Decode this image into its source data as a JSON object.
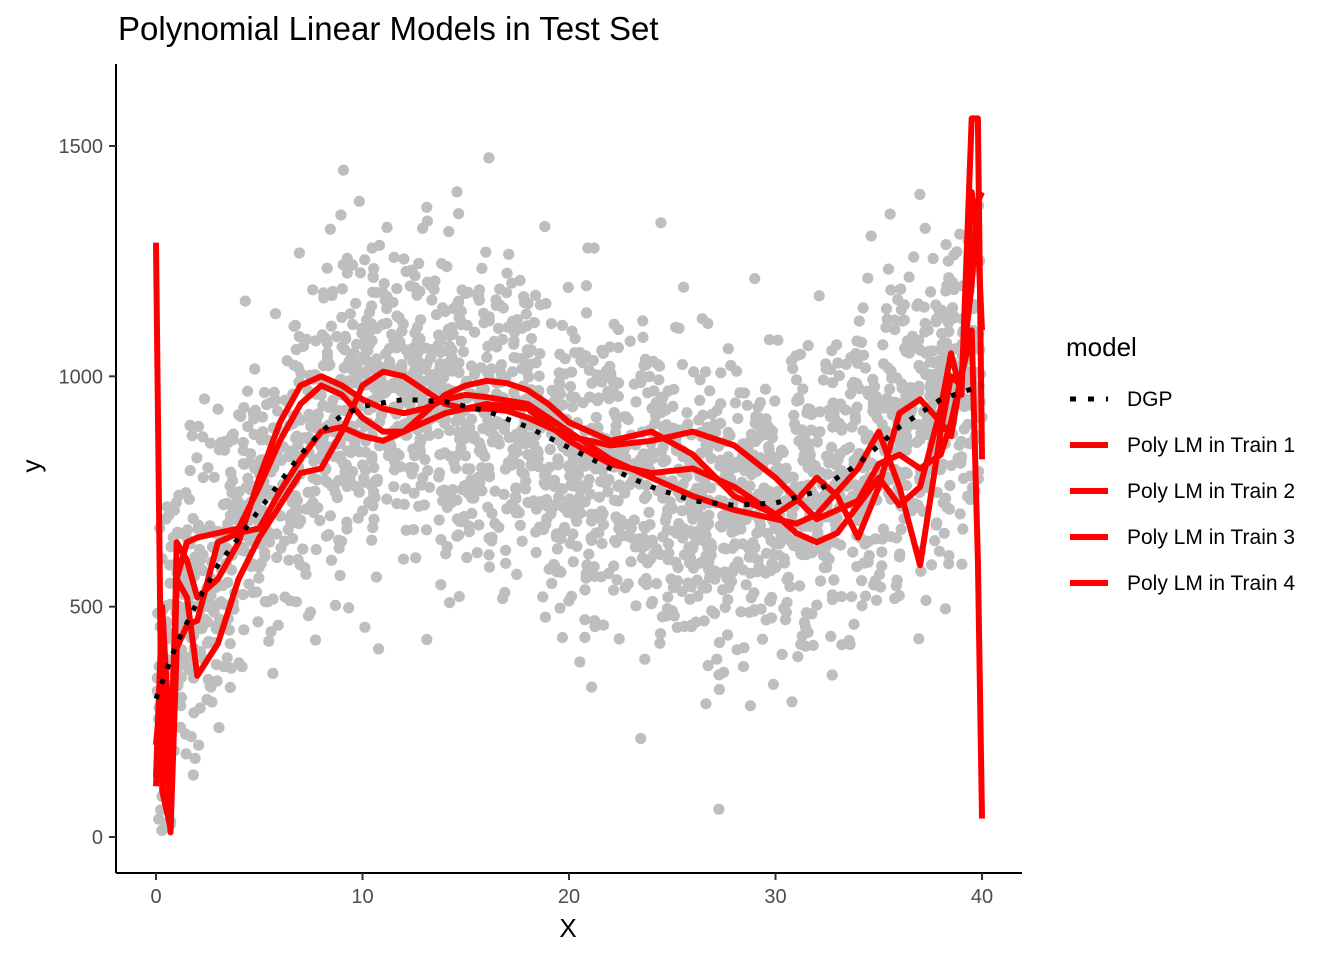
{
  "chart_data": {
    "type": "scatter",
    "title": "Polynomial Linear Models in Test Set",
    "xlabel": "X",
    "ylabel": "y",
    "xlim": [
      -2,
      42
    ],
    "ylim": [
      -80,
      1680
    ],
    "x_ticks": [
      0,
      10,
      20,
      30,
      40
    ],
    "y_ticks": [
      0,
      500,
      1000,
      1500
    ],
    "grid": false,
    "legend": {
      "title": "model",
      "position": "right",
      "entries": [
        {
          "label": "DGP",
          "color": "#000000",
          "style": "dotted"
        },
        {
          "label": "Poly LM in Train 1",
          "color": "#ff0000",
          "style": "solid"
        },
        {
          "label": "Poly LM in Train 2",
          "color": "#ff0000",
          "style": "solid"
        },
        {
          "label": "Poly LM in Train 3",
          "color": "#ff0000",
          "style": "solid"
        },
        {
          "label": "Poly LM in Train 4",
          "color": "#ff0000",
          "style": "solid"
        }
      ]
    },
    "points_color": "#bebebe",
    "series": [
      {
        "name": "DGP",
        "color": "#000000",
        "style": "dotted",
        "x": [
          0,
          1,
          2,
          3,
          4,
          5,
          6,
          7,
          8,
          9,
          10,
          12,
          14,
          16,
          18,
          20,
          22,
          24,
          26,
          28,
          30,
          32,
          34,
          36,
          38,
          40
        ],
        "y": [
          300,
          420,
          510,
          590,
          650,
          710,
          770,
          830,
          880,
          915,
          935,
          950,
          945,
          925,
          890,
          845,
          800,
          760,
          730,
          720,
          725,
          750,
          810,
          890,
          950,
          980
        ]
      },
      {
        "name": "Poly LM in Train 1",
        "color": "#ff0000",
        "style": "solid",
        "x": [
          0,
          0.3,
          0.7,
          1,
          1.5,
          2,
          3,
          4,
          5,
          6,
          7,
          8,
          9,
          10,
          11,
          12,
          13,
          14,
          15,
          16,
          17,
          18,
          19,
          20,
          22,
          24,
          26,
          28,
          30,
          32,
          34,
          35,
          36,
          37,
          38,
          38.5,
          39,
          39.5,
          39.8,
          40
        ],
        "y": [
          1290,
          100,
          20,
          560,
          640,
          650,
          660,
          670,
          760,
          860,
          940,
          980,
          960,
          910,
          880,
          880,
          900,
          920,
          930,
          930,
          925,
          910,
          890,
          870,
          850,
          860,
          880,
          850,
          780,
          690,
          730,
          810,
          830,
          800,
          830,
          900,
          1000,
          1100,
          600,
          40
        ]
      },
      {
        "name": "Poly LM in Train 2",
        "color": "#ff0000",
        "style": "solid",
        "x": [
          0,
          0.3,
          0.7,
          1,
          1.5,
          2,
          3,
          4,
          5,
          6,
          7,
          8,
          9,
          10,
          11,
          12,
          13,
          14,
          15,
          16,
          18,
          20,
          22,
          24,
          26,
          28,
          30,
          31,
          32,
          34,
          35,
          36,
          37,
          38,
          38.5,
          39,
          39.5,
          39.8,
          40
        ],
        "y": [
          110,
          430,
          20,
          640,
          600,
          520,
          560,
          640,
          780,
          900,
          980,
          1000,
          980,
          950,
          930,
          920,
          930,
          950,
          960,
          955,
          940,
          880,
          820,
          780,
          740,
          710,
          690,
          680,
          700,
          800,
          880,
          760,
          590,
          880,
          1000,
          980,
          1400,
          1300,
          1100
        ]
      },
      {
        "name": "Poly LM in Train 3",
        "color": "#ff0000",
        "style": "solid",
        "x": [
          0,
          0.3,
          0.7,
          1,
          1.5,
          2,
          3,
          4,
          5,
          6,
          7,
          8,
          9,
          10,
          11,
          12,
          13,
          14,
          15,
          16,
          18,
          20,
          22,
          24,
          26,
          28,
          30,
          31,
          32,
          33,
          34,
          35,
          36,
          37,
          38,
          38.5,
          39,
          39.5,
          39.8,
          40
        ],
        "y": [
          130,
          500,
          180,
          560,
          520,
          350,
          420,
          560,
          650,
          720,
          790,
          800,
          880,
          980,
          1010,
          1000,
          970,
          940,
          930,
          940,
          930,
          860,
          810,
          790,
          800,
          760,
          700,
          660,
          640,
          660,
          720,
          780,
          720,
          760,
          930,
          1050,
          960,
          1560,
          1560,
          820
        ]
      },
      {
        "name": "Poly LM in Train 4",
        "color": "#ff0000",
        "style": "solid",
        "x": [
          0,
          0.3,
          0.7,
          1,
          1.5,
          2,
          3,
          4,
          5,
          6,
          7,
          8,
          9,
          10,
          11,
          12,
          13,
          14,
          15,
          16,
          17,
          18,
          19,
          20,
          22,
          24,
          26,
          28,
          30,
          31,
          32,
          33,
          34,
          35,
          36,
          37,
          38,
          38.5,
          39,
          39.5,
          39.8,
          40
        ],
        "y": [
          200,
          350,
          10,
          410,
          460,
          470,
          640,
          660,
          670,
          750,
          820,
          880,
          890,
          870,
          860,
          880,
          920,
          960,
          980,
          990,
          985,
          970,
          940,
          900,
          860,
          880,
          830,
          740,
          700,
          730,
          780,
          740,
          650,
          760,
          920,
          950,
          900,
          870,
          1000,
          1200,
          1380,
          1400
        ]
      }
    ]
  }
}
